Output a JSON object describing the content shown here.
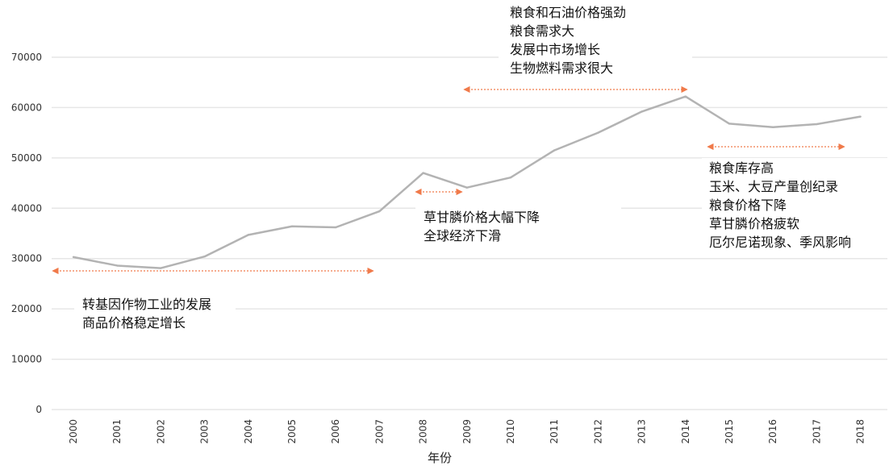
{
  "chart_data": {
    "type": "line",
    "title": "",
    "xlabel": "年份",
    "ylabel": "",
    "x": [
      "2000",
      "2001",
      "2002",
      "2003",
      "2004",
      "2005",
      "2006",
      "2007",
      "2008",
      "2009",
      "2010",
      "2011",
      "2012",
      "2013",
      "2014",
      "2015",
      "2016",
      "2017",
      "2018"
    ],
    "series": [
      {
        "values": [
          30300,
          28600,
          28100,
          30400,
          34700,
          36400,
          36200,
          39400,
          47000,
          44100,
          46100,
          51500,
          55000,
          59200,
          62200,
          56800,
          56100,
          56700,
          58200
        ]
      }
    ],
    "yticks": [
      0,
      10000,
      20000,
      30000,
      40000,
      50000,
      60000,
      70000
    ],
    "ylim": [
      0,
      72000
    ],
    "grid": true,
    "legend": "none",
    "colors": {
      "line": "#b3b3b3",
      "grid": "#e6e6e6",
      "arrow": "#f07a4a"
    },
    "annotations": [
      {
        "id": "anno-2000-2007",
        "from": "2000",
        "to": "2007",
        "lines": [
          "转基因作物工业的发展",
          "商品价格稳定增长"
        ]
      },
      {
        "id": "anno-2008",
        "from": "2008",
        "to": "2008",
        "lines": [
          "草甘膦价格大幅下降",
          "全球经济下滑"
        ]
      },
      {
        "id": "anno-2009-2014",
        "from": "2009",
        "to": "2014",
        "lines": [
          "粮食和石油价格强劲",
          "粮食需求大",
          "发展中市场增长",
          "生物燃料需求很大"
        ]
      },
      {
        "id": "anno-2015-2018",
        "from": "2015",
        "to": "2018",
        "lines": [
          "粮食库存高",
          "玉米、大豆产量创纪录",
          "粮食价格下降",
          "草甘膦价格疲软",
          "厄尔尼诺现象、季风影响"
        ]
      }
    ]
  }
}
